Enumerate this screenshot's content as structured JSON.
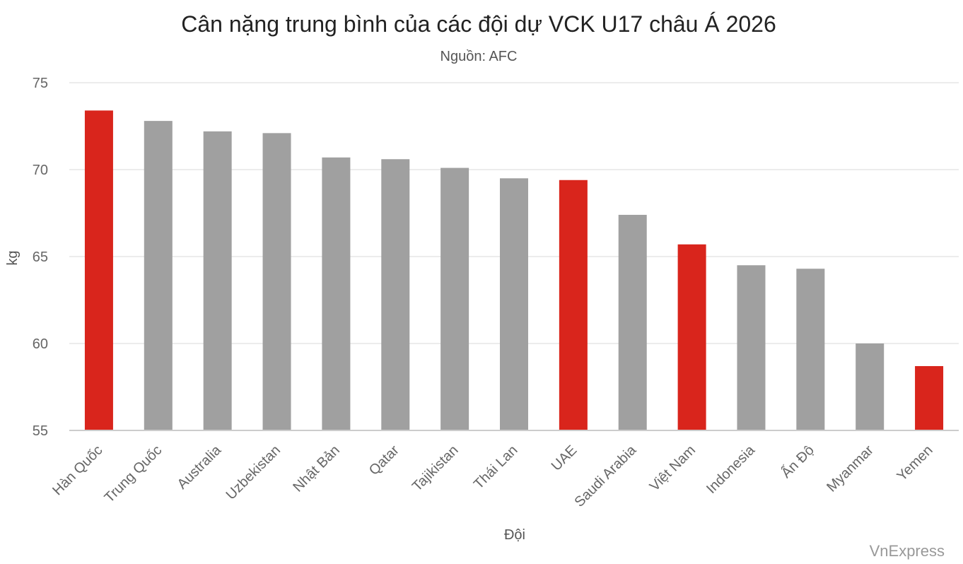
{
  "chart_data": {
    "type": "bar",
    "title": "Cân nặng trung bình của các đội dự VCK U17 châu Á 2026",
    "subtitle": "Nguồn: AFC",
    "xlabel": "Đội",
    "ylabel": "kg",
    "ylim": [
      55,
      75
    ],
    "yticks": [
      "55",
      "60",
      "65",
      "70",
      "75"
    ],
    "grid": true,
    "categories": [
      "Hàn Quốc",
      "Trung Quốc",
      "Australia",
      "Uzbekistan",
      "Nhật Bản",
      "Qatar",
      "Tajikistan",
      "Thái Lan",
      "UAE",
      "Saudi Arabia",
      "Việt Nam",
      "Indonesia",
      "Ấn Độ",
      "Myanmar",
      "Yemen"
    ],
    "values": [
      73.4,
      72.8,
      72.2,
      72.1,
      70.7,
      70.6,
      70.1,
      69.5,
      69.4,
      67.4,
      65.7,
      64.5,
      64.3,
      60.0,
      58.7
    ],
    "highlighted": [
      true,
      false,
      false,
      false,
      false,
      false,
      false,
      false,
      true,
      false,
      true,
      false,
      false,
      false,
      true
    ],
    "colors": {
      "highlight": "#d9251c",
      "default": "#a0a0a0",
      "grid": "#e6e6e6",
      "axis": "#cccccc"
    }
  },
  "credit": "VnExpress"
}
